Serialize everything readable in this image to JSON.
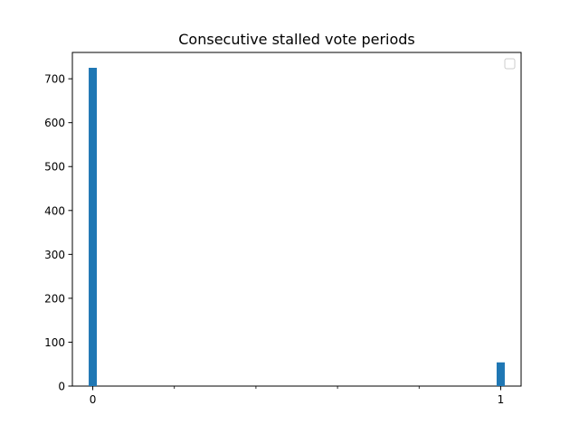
{
  "chart_data": {
    "type": "bar",
    "title": "Consecutive stalled vote periods",
    "xlabel": "",
    "ylabel": "",
    "categories": [
      "0",
      "1"
    ],
    "x": [
      0,
      1
    ],
    "values": [
      725,
      54
    ],
    "bar_color": "#1f77b4",
    "xlim": [
      -0.05,
      1.05
    ],
    "ylim": [
      0,
      760
    ],
    "x_major_ticks": [
      {
        "value": 0,
        "label": "0"
      },
      {
        "value": 1,
        "label": "1"
      }
    ],
    "x_minor_ticks": [
      0.2,
      0.4,
      0.6,
      0.8
    ],
    "y_ticks": [
      {
        "value": 0,
        "label": "0"
      },
      {
        "value": 100,
        "label": "100"
      },
      {
        "value": 200,
        "label": "200"
      },
      {
        "value": 300,
        "label": "300"
      },
      {
        "value": 400,
        "label": "400"
      },
      {
        "value": 500,
        "label": "500"
      },
      {
        "value": 600,
        "label": "600"
      },
      {
        "value": 700,
        "label": "700"
      }
    ],
    "grid": false,
    "legend": {
      "placement": "top-right",
      "entries": []
    }
  }
}
